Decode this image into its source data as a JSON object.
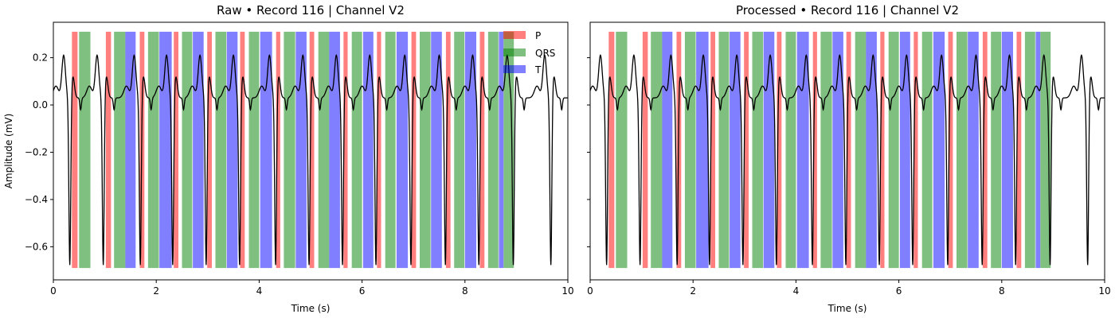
{
  "chart_data": [
    {
      "type": "line",
      "title": "Raw • Record 116 | Channel V2",
      "xlabel": "Time (s)",
      "ylabel": "Amplitude (mV)",
      "xlim": [
        0,
        10
      ],
      "ylim": [
        -0.74,
        0.35
      ],
      "xticks": [
        0,
        2,
        4,
        6,
        8,
        10
      ],
      "yticks": [
        -0.6,
        -0.4,
        -0.2,
        0.0,
        0.2
      ],
      "ytick_labels": [
        "−0.6",
        "−0.4",
        "−0.2",
        "0.0",
        "0.2"
      ],
      "grid": false,
      "legend": {
        "placement": "top-right",
        "entries": [
          "P",
          "QRS",
          "T"
        ]
      },
      "band_range": [
        -0.69,
        0.31
      ],
      "series": [
        {
          "name": "ECG",
          "beat_times": [
            0.2,
            0.85,
            1.57,
            2.2,
            2.85,
            3.5,
            4.2,
            4.85,
            5.5,
            6.15,
            6.83,
            7.5,
            8.15,
            8.82,
            9.55
          ],
          "color": "#000000"
        }
      ],
      "segments": {
        "P": [
          [
            0.36,
            0.47
          ],
          [
            1.02,
            1.12
          ],
          [
            1.68,
            1.77
          ],
          [
            2.34,
            2.43
          ],
          [
            2.99,
            3.08
          ],
          [
            3.63,
            3.72
          ],
          [
            4.33,
            4.41
          ],
          [
            4.98,
            5.07
          ],
          [
            5.64,
            5.72
          ],
          [
            6.29,
            6.37
          ],
          [
            6.96,
            7.05
          ],
          [
            7.63,
            7.72
          ],
          [
            8.29,
            8.38
          ]
        ],
        "QRS": [
          [
            0.5,
            0.72
          ],
          [
            1.18,
            1.4
          ],
          [
            1.84,
            2.05
          ],
          [
            2.5,
            2.7
          ],
          [
            3.15,
            3.36
          ],
          [
            3.8,
            4.0
          ],
          [
            4.48,
            4.7
          ],
          [
            5.15,
            5.36
          ],
          [
            5.8,
            6.0
          ],
          [
            6.45,
            6.65
          ],
          [
            7.12,
            7.33
          ],
          [
            7.79,
            7.99
          ],
          [
            8.45,
            8.65
          ],
          [
            8.75,
            8.95
          ]
        ],
        "T": [
          [
            1.4,
            1.6
          ],
          [
            2.06,
            2.3
          ],
          [
            2.71,
            2.92
          ],
          [
            3.37,
            3.58
          ],
          [
            4.02,
            4.25
          ],
          [
            4.71,
            4.92
          ],
          [
            5.36,
            5.57
          ],
          [
            6.02,
            6.22
          ],
          [
            6.67,
            6.89
          ],
          [
            7.34,
            7.55
          ],
          [
            8.0,
            8.22
          ],
          [
            8.66,
            8.75
          ]
        ]
      },
      "segment_colors": {
        "P": "#ff0000",
        "QRS": "#008000",
        "T": "#0000ff"
      }
    },
    {
      "type": "line",
      "title": "Processed • Record 116 | Channel V2",
      "xlabel": "Time (s)",
      "ylabel": "",
      "xlim": [
        0,
        10
      ],
      "ylim": [
        -0.74,
        0.35
      ],
      "xticks": [
        0,
        2,
        4,
        6,
        8,
        10
      ],
      "yticks": [
        -0.6,
        -0.4,
        -0.2,
        0.0,
        0.2
      ],
      "ytick_labels": [
        "",
        "",
        "",
        "",
        ""
      ],
      "grid": false,
      "band_range": [
        -0.69,
        0.31
      ],
      "series": [
        {
          "name": "ECG",
          "beat_times": [
            0.2,
            0.85,
            1.57,
            2.2,
            2.85,
            3.5,
            4.2,
            4.85,
            5.5,
            6.15,
            6.83,
            7.5,
            8.15,
            8.82,
            9.55
          ],
          "color": "#000000"
        }
      ],
      "segments": {
        "P": [
          [
            0.36,
            0.47
          ],
          [
            1.02,
            1.12
          ],
          [
            1.68,
            1.77
          ],
          [
            2.34,
            2.43
          ],
          [
            2.99,
            3.08
          ],
          [
            3.63,
            3.72
          ],
          [
            4.33,
            4.41
          ],
          [
            4.98,
            5.07
          ],
          [
            5.64,
            5.72
          ],
          [
            6.29,
            6.37
          ],
          [
            6.96,
            7.05
          ],
          [
            7.63,
            7.72
          ],
          [
            8.29,
            8.38
          ]
        ],
        "QRS": [
          [
            0.5,
            0.72
          ],
          [
            1.18,
            1.4
          ],
          [
            1.84,
            2.05
          ],
          [
            2.5,
            2.7
          ],
          [
            3.15,
            3.36
          ],
          [
            3.8,
            4.0
          ],
          [
            4.48,
            4.7
          ],
          [
            5.15,
            5.36
          ],
          [
            5.8,
            6.0
          ],
          [
            6.45,
            6.65
          ],
          [
            7.12,
            7.33
          ],
          [
            7.79,
            7.99
          ],
          [
            8.45,
            8.65
          ],
          [
            8.75,
            8.95
          ]
        ],
        "T": [
          [
            1.4,
            1.6
          ],
          [
            2.06,
            2.3
          ],
          [
            2.71,
            2.92
          ],
          [
            3.37,
            3.58
          ],
          [
            4.02,
            4.25
          ],
          [
            4.71,
            4.92
          ],
          [
            5.36,
            5.57
          ],
          [
            6.02,
            6.22
          ],
          [
            6.67,
            6.89
          ],
          [
            7.34,
            7.55
          ],
          [
            8.0,
            8.22
          ],
          [
            8.66,
            8.75
          ]
        ]
      },
      "segment_colors": {
        "P": "#ff0000",
        "QRS": "#008000",
        "T": "#0000ff"
      }
    }
  ]
}
